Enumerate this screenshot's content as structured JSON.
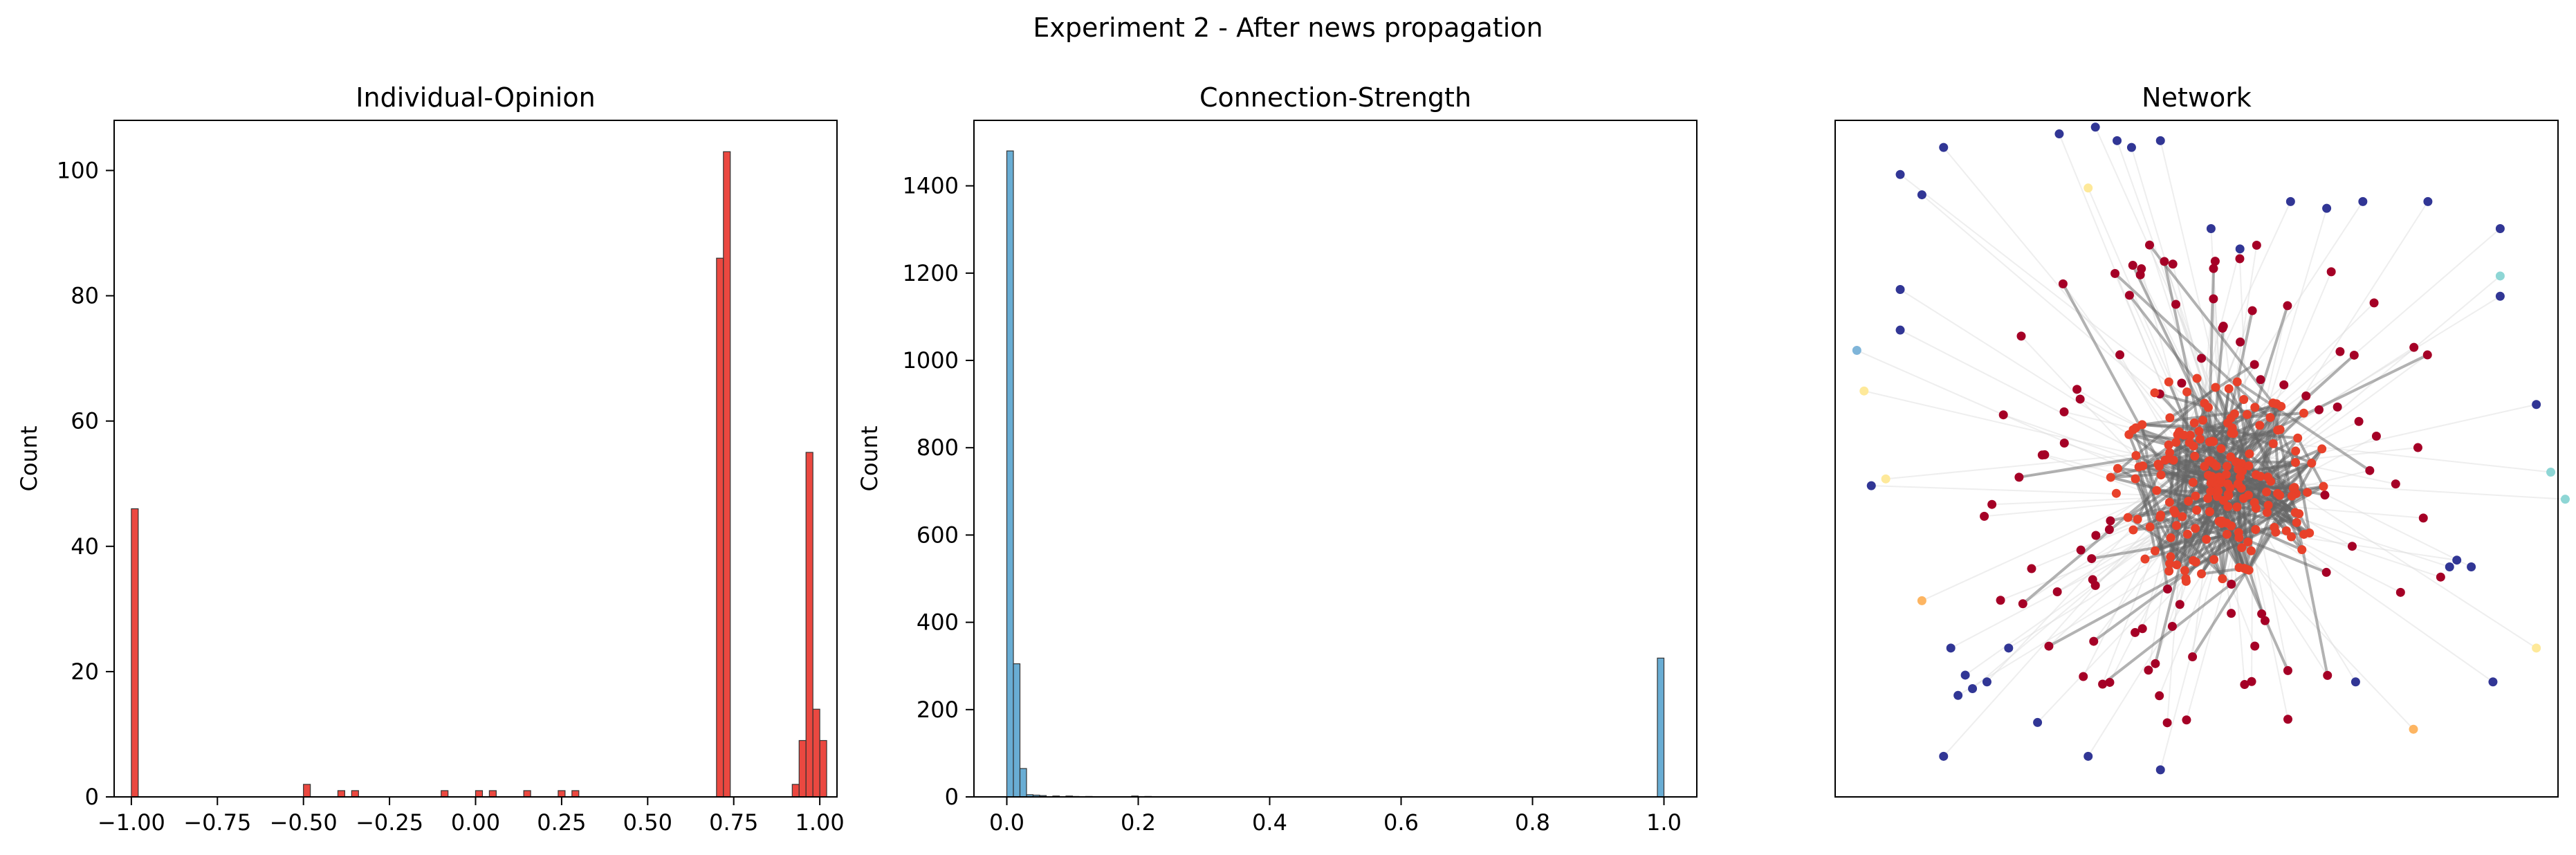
{
  "figure": {
    "suptitle": "Experiment 2 - After news propagation"
  },
  "chart_data": [
    {
      "type": "bar",
      "title": "Individual-Opinion",
      "xlabel": "",
      "ylabel": "Count",
      "xlim": [
        -1.05,
        1.05
      ],
      "ylim": [
        0,
        108
      ],
      "xticks": [
        -1.0,
        -0.75,
        -0.5,
        -0.25,
        0.0,
        0.25,
        0.5,
        0.75,
        1.0
      ],
      "xtick_labels": [
        "−1.00",
        "−0.75",
        "−0.50",
        "−0.25",
        "0.00",
        "0.25",
        "0.50",
        "0.75",
        "1.00"
      ],
      "yticks": [
        0,
        20,
        40,
        60,
        80,
        100
      ],
      "ytick_labels": [
        "0",
        "20",
        "40",
        "60",
        "80",
        "100"
      ],
      "color": "#e8281e",
      "bin_width": 0.02,
      "bins": [
        {
          "x": -0.99,
          "count": 46
        },
        {
          "x": -0.49,
          "count": 2
        },
        {
          "x": -0.39,
          "count": 1
        },
        {
          "x": -0.35,
          "count": 1
        },
        {
          "x": -0.09,
          "count": 1
        },
        {
          "x": 0.01,
          "count": 1
        },
        {
          "x": 0.05,
          "count": 1
        },
        {
          "x": 0.15,
          "count": 1
        },
        {
          "x": 0.25,
          "count": 1
        },
        {
          "x": 0.29,
          "count": 1
        },
        {
          "x": 0.71,
          "count": 86
        },
        {
          "x": 0.73,
          "count": 103
        },
        {
          "x": 0.93,
          "count": 2
        },
        {
          "x": 0.95,
          "count": 9
        },
        {
          "x": 0.97,
          "count": 55
        },
        {
          "x": 0.99,
          "count": 14
        },
        {
          "x": 1.01,
          "count": 9
        }
      ]
    },
    {
      "type": "bar",
      "title": "Connection-Strength",
      "xlabel": "",
      "ylabel": "Count",
      "xlim": [
        -0.05,
        1.05
      ],
      "ylim": [
        0,
        1550
      ],
      "xticks": [
        0.0,
        0.2,
        0.4,
        0.6,
        0.8,
        1.0
      ],
      "xtick_labels": [
        "0.0",
        "0.2",
        "0.4",
        "0.6",
        "0.8",
        "1.0"
      ],
      "yticks": [
        0,
        200,
        400,
        600,
        800,
        1000,
        1200,
        1400
      ],
      "ytick_labels": [
        "0",
        "200",
        "400",
        "600",
        "800",
        "1000",
        "1200",
        "1400"
      ],
      "color": "#4f9fcc",
      "bin_width": 0.01,
      "bins": [
        {
          "x": 0.005,
          "count": 1480
        },
        {
          "x": 0.015,
          "count": 305
        },
        {
          "x": 0.025,
          "count": 65
        },
        {
          "x": 0.035,
          "count": 5
        },
        {
          "x": 0.045,
          "count": 4
        },
        {
          "x": 0.055,
          "count": 3
        },
        {
          "x": 0.075,
          "count": 2
        },
        {
          "x": 0.095,
          "count": 2
        },
        {
          "x": 0.105,
          "count": 1
        },
        {
          "x": 0.125,
          "count": 1
        },
        {
          "x": 0.195,
          "count": 2
        },
        {
          "x": 0.215,
          "count": 1
        },
        {
          "x": 0.995,
          "count": 318
        }
      ]
    },
    {
      "type": "scatter",
      "title": "Network",
      "xlabel": "",
      "ylabel": "",
      "axes": "hidden",
      "xlim": [
        0,
        100
      ],
      "ylim": [
        0,
        100
      ],
      "center": [
        53,
        47
      ],
      "node_colors": {
        "dark_red": "#a50026",
        "red_orange": "#e8412a",
        "navy": "#313695",
        "light_blue": "#7fb5d9",
        "pale_yellow": "#fee99a",
        "orange": "#fdb562",
        "teal": "#8ed6d5"
      },
      "outer_nodes": [
        {
          "x": 15,
          "y": 96,
          "c": "navy"
        },
        {
          "x": 9,
          "y": 92,
          "c": "navy"
        },
        {
          "x": 12,
          "y": 89,
          "c": "navy"
        },
        {
          "x": 31,
          "y": 98,
          "c": "navy"
        },
        {
          "x": 36,
          "y": 99,
          "c": "navy"
        },
        {
          "x": 39,
          "y": 97,
          "c": "navy"
        },
        {
          "x": 45,
          "y": 97,
          "c": "navy"
        },
        {
          "x": 52,
          "y": 84,
          "c": "navy"
        },
        {
          "x": 56,
          "y": 81,
          "c": "navy"
        },
        {
          "x": 68,
          "y": 87,
          "c": "navy"
        },
        {
          "x": 73,
          "y": 88,
          "c": "navy"
        },
        {
          "x": 82,
          "y": 88,
          "c": "navy"
        },
        {
          "x": 92,
          "y": 84,
          "c": "navy"
        },
        {
          "x": 92,
          "y": 74,
          "c": "navy"
        },
        {
          "x": 9,
          "y": 75,
          "c": "navy"
        },
        {
          "x": 9,
          "y": 69,
          "c": "navy"
        },
        {
          "x": 5,
          "y": 46,
          "c": "navy"
        },
        {
          "x": 97,
          "y": 58,
          "c": "navy"
        },
        {
          "x": 16,
          "y": 22,
          "c": "navy"
        },
        {
          "x": 24,
          "y": 22,
          "c": "navy"
        },
        {
          "x": 21,
          "y": 17,
          "c": "navy"
        },
        {
          "x": 28,
          "y": 11,
          "c": "navy"
        },
        {
          "x": 15,
          "y": 6,
          "c": "navy"
        },
        {
          "x": 35,
          "y": 6,
          "c": "navy"
        },
        {
          "x": 45,
          "y": 4,
          "c": "navy"
        },
        {
          "x": 72,
          "y": 17,
          "c": "navy"
        },
        {
          "x": 91,
          "y": 17,
          "c": "navy"
        },
        {
          "x": 85,
          "y": 34,
          "c": "navy"
        },
        {
          "x": 88,
          "y": 34,
          "c": "navy"
        },
        {
          "x": 86,
          "y": 35,
          "c": "navy"
        },
        {
          "x": 18,
          "y": 18,
          "c": "navy"
        },
        {
          "x": 17,
          "y": 15,
          "c": "navy"
        },
        {
          "x": 19,
          "y": 16,
          "c": "navy"
        },
        {
          "x": 3,
          "y": 66,
          "c": "light_blue"
        },
        {
          "x": 4,
          "y": 60,
          "c": "pale_yellow"
        },
        {
          "x": 7,
          "y": 47,
          "c": "pale_yellow"
        },
        {
          "x": 12,
          "y": 29,
          "c": "orange"
        },
        {
          "x": 80,
          "y": 10,
          "c": "orange"
        },
        {
          "x": 35,
          "y": 90,
          "c": "pale_yellow"
        },
        {
          "x": 92,
          "y": 77,
          "c": "teal"
        },
        {
          "x": 99,
          "y": 48,
          "c": "teal"
        },
        {
          "x": 101,
          "y": 44,
          "c": "teal"
        },
        {
          "x": 97,
          "y": 22,
          "c": "pale_yellow"
        },
        {
          "x": 63,
          "y": 88,
          "c": "navy"
        },
        {
          "x": 41,
          "y": 96,
          "c": "navy"
        }
      ]
    }
  ]
}
